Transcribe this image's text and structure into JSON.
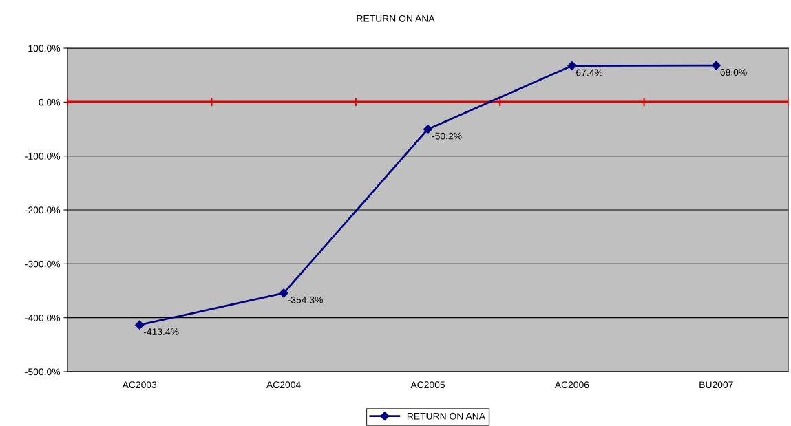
{
  "chart_data": {
    "type": "line",
    "title": "RETURN ON ANA",
    "categories": [
      "AC2003",
      "AC2004",
      "AC2005",
      "AC2006",
      "BU2007"
    ],
    "series": [
      {
        "name": "RETURN ON ANA",
        "color": "#000080",
        "values": [
          -413.4,
          -354.3,
          -50.2,
          67.4,
          68.0
        ],
        "value_labels": [
          "-413.4%",
          "-354.3%",
          "-50.2%",
          "67.4%",
          "68.0%"
        ]
      }
    ],
    "ylim": [
      -500,
      100
    ],
    "yticks": [
      {
        "value": -500,
        "label": "-500.0%"
      },
      {
        "value": -400,
        "label": "-400.0%"
      },
      {
        "value": -300,
        "label": "-300.0%"
      },
      {
        "value": -200,
        "label": "-200.0%"
      },
      {
        "value": -100,
        "label": "-100.0%"
      },
      {
        "value": 0,
        "label": "0.0%"
      },
      {
        "value": 100,
        "label": "100.0%"
      }
    ],
    "ref_lines": [
      {
        "axis": "y",
        "value": 0,
        "color": "#e00000"
      }
    ],
    "grid": "y",
    "legend": "bottom",
    "marker": "diamond",
    "line_style": "solid"
  }
}
